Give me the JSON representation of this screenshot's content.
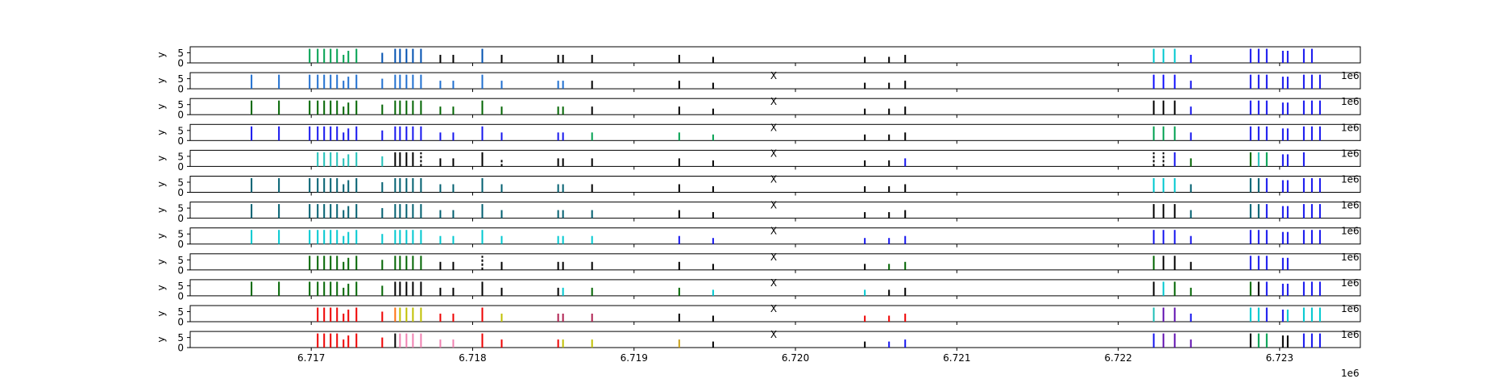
{
  "chart_data": {
    "type": "spike-raster",
    "n_panels": 12,
    "xlim": [
      6.71625,
      6.7235
    ],
    "ylim": [
      0,
      8
    ],
    "panel_ytick_labels": [
      "0",
      "5"
    ],
    "panel_ylabel": "y",
    "panel_xlabel": "X",
    "x_offset_label": "1e6",
    "x_tick_values": [
      6.717,
      6.718,
      6.719,
      6.72,
      6.721,
      6.722,
      6.723
    ],
    "x_tick_labels": [
      "6.717",
      "6.718",
      "6.719",
      "6.720",
      "6.721",
      "6.722",
      "6.723"
    ],
    "event_x": [
      6.71663,
      6.7168,
      6.71699,
      6.71704,
      6.71708,
      6.71712,
      6.71716,
      6.7172,
      6.71723,
      6.71728,
      6.71744,
      6.71752,
      6.71755,
      6.71759,
      6.71763,
      6.71768,
      6.7178,
      6.71788,
      6.71806,
      6.71818,
      6.71853,
      6.71856,
      6.71874,
      6.71928,
      6.71949,
      6.72043,
      6.72058,
      6.72068,
      6.72222,
      6.72228,
      6.72235,
      6.72245,
      6.72282,
      6.72287,
      6.72292,
      6.72302,
      6.72305,
      6.72315,
      6.7232,
      6.72325
    ],
    "event_height": [
      7,
      7,
      7,
      7,
      7,
      7,
      7,
      4,
      6,
      7,
      5,
      7,
      7,
      7,
      7,
      7,
      4,
      4,
      7,
      4,
      4,
      4,
      4,
      4,
      3,
      3,
      3,
      4,
      7,
      7,
      7,
      4,
      7,
      7,
      7,
      6,
      6,
      7,
      7,
      7
    ],
    "colors": {
      "g": "#00a050",
      "n": "#0050b0",
      "k": "#000000",
      "d": "#006400",
      "b": "#1515ee",
      "m": "#1f6fd0",
      "c": "#00c8d0",
      "l": "#20c0b8",
      "t": "#005f70",
      "r": "#ee0000",
      "o": "#ff7010",
      "y": "#c0c000",
      "p": "#f080b0",
      "u": "#6010b0",
      "x": "#c8a018",
      "w": "#b02050",
      "s": "#1010ff"
    },
    "panels": [
      {
        "ticks": "_ _ gggggggg nnnnnn kk n k kk k k k k k k c c c s bbbbbbb",
        "dashed": ""
      },
      {
        "ticks": "mmmmmmmmmmmmmmmmmmmmmmkkk kk k s s s bbbb bbbbbbb",
        "dashed": ""
      },
      {
        "ticks": "ddddddddddddddddddddddkkk kk k k k k bbbb bbbbbbb",
        "dashed": ""
      },
      {
        "ticks": "bbbbbbbbbbbbbbbbbbbbbbggg kk k g g g bbbb bbbbbbb",
        "dashed": ""
      },
      {
        "ticks": "__ _llllllll kkkkkk kk k kk k k k k k b k k b d d l g bbb",
        "dashed": "15,19,28,29"
      },
      {
        "ticks": "ttttttttttttttttttttttkkk kk k c c c tttb bbbbbbb",
        "dashed": ""
      },
      {
        "ticks": "tttttttttttttttttttttttkk kk k k k k tttb bbbbbbb",
        "dashed": ""
      },
      {
        "ticks": "cccccccccccccccccccccccbb bb b b b b bbbb bbbbbbb",
        "dashed": ""
      },
      {
        "ticks": "_ _ dddddddd dddddd kk k kk k k k k k dddk kkbbbbb",
        "dashed": "18"
      },
      {
        "ticks": "dddddddddddkkkkkkkkkkcddcck kk c d d d k bbbb bbbbbbb",
        "dashed": ""
      },
      {
        "ticks": "__ _rrrrrrrr oyyyyr rr y ww w k k r r r l u u b c c bbcccc",
        "dashed": ""
      },
      {
        "ticks": "__ _rrrrrrrr kpppppp rr r yy x k k b b b u u u k g g kk bbbb",
        "dashed": ""
      }
    ]
  }
}
